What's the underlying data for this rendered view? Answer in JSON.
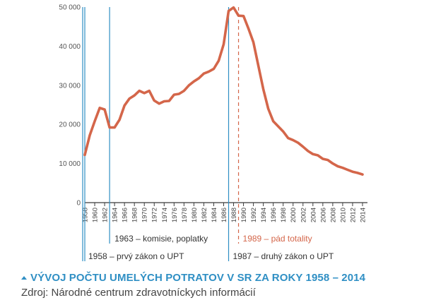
{
  "chart_data": {
    "type": "line",
    "title": "",
    "xlabel": "",
    "ylabel": "",
    "xlim": [
      1958,
      2015
    ],
    "ylim": [
      0,
      50000
    ],
    "yticks": [
      0,
      10000,
      20000,
      30000,
      40000,
      50000
    ],
    "ytick_labels": [
      "0",
      "10 000",
      "20 000",
      "30 000",
      "40 000",
      "50 000"
    ],
    "xticks": [
      1958,
      1960,
      1962,
      1964,
      1966,
      1968,
      1970,
      1972,
      1974,
      1976,
      1978,
      1980,
      1982,
      1984,
      1986,
      1988,
      1990,
      1992,
      1994,
      1996,
      1998,
      2000,
      2002,
      2004,
      2006,
      2008,
      2010,
      2012,
      2014
    ],
    "series": [
      {
        "color": "#d4664a",
        "x": [
          1958,
          1959,
          1960,
          1961,
          1962,
          1963,
          1964,
          1965,
          1966,
          1967,
          1968,
          1969,
          1970,
          1971,
          1972,
          1973,
          1974,
          1975,
          1976,
          1977,
          1978,
          1979,
          1980,
          1981,
          1982,
          1983,
          1984,
          1985,
          1986,
          1987,
          1988,
          1989,
          1990,
          1991,
          1992,
          1993,
          1994,
          1995,
          1996,
          1997,
          1998,
          1999,
          2000,
          2001,
          2002,
          2003,
          2004,
          2005,
          2006,
          2007,
          2008,
          2009,
          2010,
          2011,
          2012,
          2013,
          2014
        ],
        "values": [
          12200,
          17200,
          20800,
          24200,
          23800,
          19200,
          19200,
          21200,
          24800,
          26600,
          27400,
          28600,
          28000,
          28600,
          26100,
          25300,
          25900,
          26000,
          27600,
          27800,
          28600,
          30000,
          31000,
          31800,
          33000,
          33500,
          34200,
          36300,
          40500,
          49000,
          49900,
          47800,
          47700,
          44500,
          41000,
          35000,
          29000,
          24000,
          20800,
          19500,
          18200,
          16500,
          16000,
          15300,
          14300,
          13200,
          12400,
          12100,
          11200,
          10900,
          10000,
          9300,
          8900,
          8400,
          7900,
          7600,
          7200
        ]
      }
    ],
    "markers": [
      {
        "x": 1958,
        "label": "1958 – prvý zákon o UPT",
        "color": "#2f8fc4",
        "style": "solid"
      },
      {
        "x": 1963,
        "label": "1963 – komisie, poplatky",
        "color": "#2f8fc4",
        "style": "solid"
      },
      {
        "x": 1987,
        "label": "1987 – druhý zákon o UPT",
        "color": "#2f8fc4",
        "style": "solid"
      },
      {
        "x": 1989,
        "label": "1989 – pád totality",
        "color": "#d4664a",
        "style": "dashed"
      }
    ],
    "grid": false,
    "legend": "none"
  },
  "caption": {
    "title": "VÝVOJ POČTU UMELÝCH POTRATOV V SR ZA ROKY 1958 – 2014",
    "source": "Zdroj: Národné centrum zdravotníckych informácií",
    "accent_color": "#2f8fc4"
  }
}
